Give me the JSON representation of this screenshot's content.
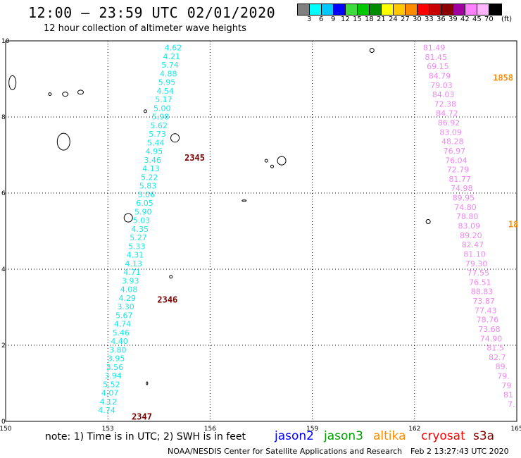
{
  "header": {
    "title": "12:00 – 23:59 UTC 02/01/2020",
    "subtitle": "12 hour collection of altimeter wave heights"
  },
  "colorbar": {
    "colors": [
      "#808080",
      "#00ffff",
      "#00c8ff",
      "#0000ff",
      "#3cdc3c",
      "#00c800",
      "#008c00",
      "#ffff00",
      "#ffc800",
      "#ff8c00",
      "#ff0000",
      "#c80000",
      "#8c0000",
      "#a000a0",
      "#ff80ff",
      "#ffb4ff",
      "#000000"
    ],
    "labels": [
      "3",
      "6",
      "9",
      "12",
      "15",
      "18",
      "21",
      "24",
      "27",
      "30",
      "33",
      "36",
      "39",
      "42",
      "45",
      "70"
    ],
    "unit": "(ft)"
  },
  "map": {
    "x_ticks": [
      "150",
      "153",
      "156",
      "159",
      "162",
      "165"
    ],
    "y_ticks": [
      "0",
      "2",
      "4",
      "6",
      "8",
      "10"
    ],
    "lon_range": [
      150,
      165
    ],
    "lat_range": [
      0,
      10
    ],
    "tracks": [
      {
        "color": "#19e6e6",
        "start": [
          155.17,
          9.75
        ],
        "end": [
          153.22,
          0.22
        ],
        "values": [
          "4.62",
          "4.21",
          "5.74",
          "4.88",
          "5.95",
          "4.54",
          "5.17",
          "5.00",
          "5.98",
          "5.62",
          "5.73",
          "5.44",
          "4.95",
          "3.46",
          "4.13",
          "5.22",
          "5.83",
          "5.06",
          "6.05",
          "5.90",
          "5.03",
          "4.35",
          "5.27",
          "5.33",
          "4.31",
          "4.13",
          "4.71",
          "3.93",
          "4.08",
          "4.29",
          "3.30",
          "5.67",
          "4.74",
          "5.46",
          "4.40",
          "3.80",
          "3.95",
          "3.56",
          "3.94",
          "5.52",
          "4.07",
          "4.12",
          "4.74"
        ]
      },
      {
        "color": "#ee88ee",
        "start": [
          162.9,
          9.75
        ],
        "end": [
          164.95,
          0.38
        ],
        "values": [
          "81.49",
          "81.45",
          "69.15",
          "84.79",
          "79.03",
          "84.03",
          "72.38",
          "84.72",
          "86.92",
          "83.09",
          "48.28",
          "76.97",
          "76.04",
          "72.79",
          "81.77",
          "74.98",
          "89.95",
          "74.80",
          "78.80",
          "83.09",
          "89.20",
          "82.47",
          "81.10",
          "79.30",
          "77.55",
          "76.51",
          "88.83",
          "73.87",
          "77.43",
          "78.76",
          "73.68",
          "74.90",
          "81.5",
          "82.7",
          "89.",
          "79.",
          "79",
          "81",
          "7."
        ]
      }
    ],
    "time_labels": [
      {
        "text": "2345",
        "lon": 155.25,
        "lat": 6.85,
        "color": "#7a0000"
      },
      {
        "text": "2346",
        "lon": 154.45,
        "lat": 3.12,
        "color": "#7a0000"
      },
      {
        "text": "2347",
        "lon": 153.7,
        "lat": 0.05,
        "color": "#7a0000"
      },
      {
        "text": "1858",
        "lon": 164.3,
        "lat": 8.95,
        "color": "#ff8c00"
      },
      {
        "text": "18",
        "lon": 164.75,
        "lat": 5.1,
        "color": "#ff8c00"
      }
    ],
    "islands": [
      {
        "lon": 150.2,
        "lat": 8.9,
        "rx": 5,
        "ry": 10
      },
      {
        "lon": 151.3,
        "lat": 8.6,
        "rx": 2,
        "ry": 2
      },
      {
        "lon": 151.75,
        "lat": 8.6,
        "rx": 4,
        "ry": 3
      },
      {
        "lon": 152.2,
        "lat": 8.65,
        "rx": 4,
        "ry": 3
      },
      {
        "lon": 151.7,
        "lat": 7.35,
        "rx": 9,
        "ry": 12
      },
      {
        "lon": 154.1,
        "lat": 8.15,
        "rx": 2,
        "ry": 2
      },
      {
        "lon": 154.97,
        "lat": 7.45,
        "rx": 6,
        "ry": 6
      },
      {
        "lon": 157.65,
        "lat": 6.85,
        "rx": 2,
        "ry": 2
      },
      {
        "lon": 158.1,
        "lat": 6.85,
        "rx": 6,
        "ry": 6
      },
      {
        "lon": 157.82,
        "lat": 6.7,
        "rx": 2,
        "ry": 2
      },
      {
        "lon": 160.75,
        "lat": 9.75,
        "rx": 3,
        "ry": 3
      },
      {
        "lon": 153.6,
        "lat": 5.35,
        "rx": 6,
        "ry": 6
      },
      {
        "lon": 157.0,
        "lat": 5.8,
        "rx": 3,
        "ry": 1
      },
      {
        "lon": 162.4,
        "lat": 5.25,
        "rx": 3,
        "ry": 3
      },
      {
        "lon": 154.85,
        "lat": 3.8,
        "rx": 2,
        "ry": 2
      },
      {
        "lon": 154.15,
        "lat": 1.0,
        "rx": 1,
        "ry": 2
      }
    ]
  },
  "footer": {
    "note": "note: 1) Time is in UTC; 2) SWH is in feet",
    "satellites": [
      {
        "name": "jason2",
        "color": "#0000ff"
      },
      {
        "name": "jason3",
        "color": "#00a000"
      },
      {
        "name": "altika",
        "color": "#ff8c00"
      },
      {
        "name": "cryosat",
        "color": "#ff0000"
      },
      {
        "name": "s3a",
        "color": "#8c0000"
      }
    ],
    "credit": "NOAA/NESDIS Center for Satellite Applications and Research",
    "timestamp": "Feb  2 13:27:43 UTC 2020"
  }
}
